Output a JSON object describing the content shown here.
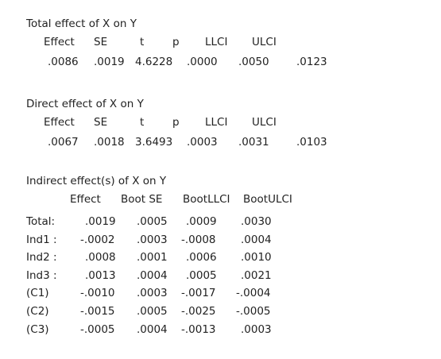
{
  "sections": [
    {
      "title": "Total effect of X on Y",
      "header": [
        "Effect",
        "SE",
        "t",
        "p",
        "LLCI",
        "ULCI"
      ],
      "values": [
        ".0086",
        ".0019",
        "4.6228",
        ".0000",
        ".0050",
        ".0123"
      ]
    },
    {
      "title": "Direct effect of X on Y",
      "header": [
        "Effect",
        "SE",
        "t",
        "p",
        "LLCI",
        "ULCI"
      ],
      "values": [
        ".0067",
        ".0018",
        "3.6493",
        ".0003",
        ".0031",
        ".0103"
      ]
    }
  ],
  "indirect": {
    "title": "Indirect effect(s) of X on Y",
    "header": [
      "Effect",
      "Boot SE",
      "BootLLCI",
      "BootULCI"
    ],
    "rows": [
      {
        "label": "Total:",
        "values": [
          ".0019",
          ".0005",
          ".0009",
          ".0030"
        ]
      },
      {
        "label": "Ind1 :",
        "values": [
          "-.0002",
          ".0003",
          "-.0008",
          ".0004"
        ]
      },
      {
        "label": "Ind2 :",
        "values": [
          ".0008",
          ".0001",
          ".0006",
          ".0010"
        ]
      },
      {
        "label": "Ind3 :",
        "values": [
          ".0013",
          ".0004",
          ".0005",
          ".0021"
        ]
      },
      {
        "label": "(C1)",
        "values": [
          "-.0010",
          ".0003",
          "-.0017",
          "-.0004"
        ]
      },
      {
        "label": "(C2)",
        "values": [
          "-.0015",
          ".0005",
          "-.0025",
          "-.0005"
        ]
      },
      {
        "label": "(C3)",
        "values": [
          "-.0005",
          ".0004",
          "-.0013",
          ".0003"
        ]
      }
    ]
  }
}
